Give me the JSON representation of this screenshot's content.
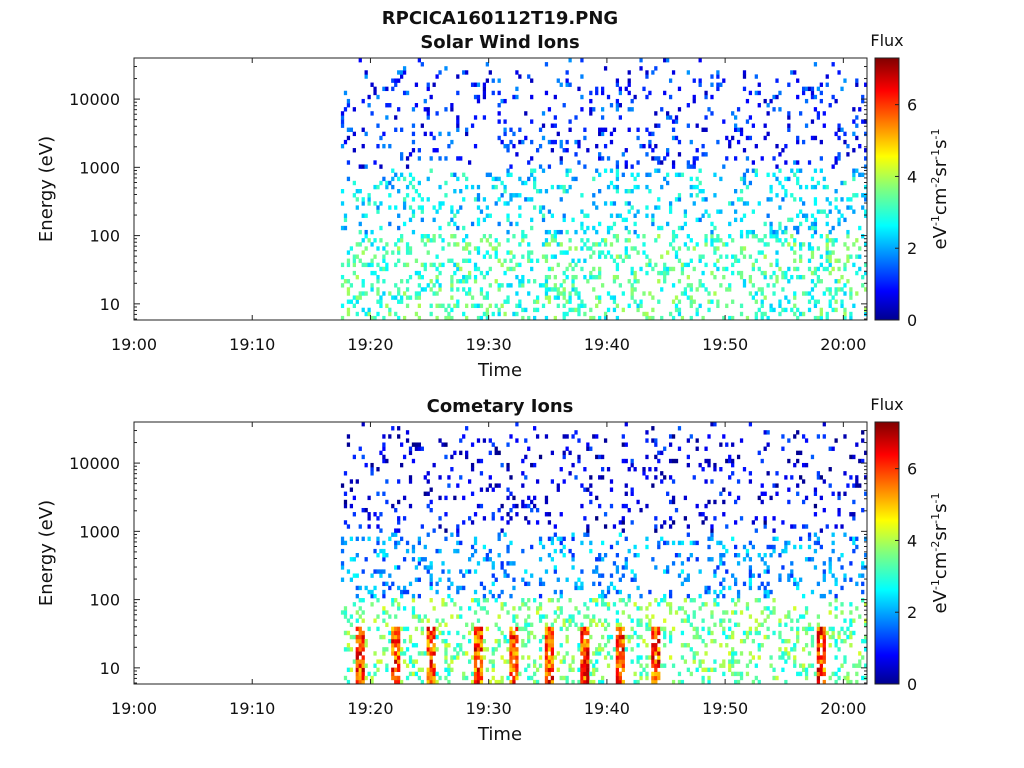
{
  "figure_title": "RPCICA160112T19.PNG",
  "chart_data": [
    {
      "type": "heatmap",
      "title": "Solar Wind Ions",
      "xlabel": "Time",
      "ylabel": "Energy (eV)",
      "x_ticks": [
        "19:00",
        "19:10",
        "19:20",
        "19:30",
        "19:40",
        "19:50",
        "20:00"
      ],
      "x_range": [
        "19:00",
        "20:02"
      ],
      "data_start": "19:17:30",
      "y_scale": "log",
      "y_range": [
        5.8,
        40000
      ],
      "y_ticks": [
        10,
        100,
        1000,
        10000
      ],
      "y_tick_labels": [
        "10",
        "100",
        "1000",
        "10000"
      ],
      "colorbar": {
        "title": "Flux",
        "label": "eV-1cm-2sr-1s-1",
        "range": [
          0,
          7.3
        ],
        "ticks": [
          0,
          2,
          4,
          6
        ],
        "tick_labels": [
          "0",
          "2",
          "4",
          "6"
        ],
        "colormap": "jet"
      },
      "typical_log_flux": {
        "above_1000eV": 1.2,
        "100_to_1000eV": 2.5,
        "below_100eV": 3.2
      },
      "peak_log_flux": 3.8,
      "grid": false
    },
    {
      "type": "heatmap",
      "title": "Cometary Ions",
      "xlabel": "Time",
      "ylabel": "Energy (eV)",
      "x_ticks": [
        "19:00",
        "19:10",
        "19:20",
        "19:30",
        "19:40",
        "19:50",
        "20:00"
      ],
      "x_range": [
        "19:00",
        "20:02"
      ],
      "data_start": "19:17:30",
      "y_scale": "log",
      "y_range": [
        5.8,
        40000
      ],
      "y_ticks": [
        10,
        100,
        1000,
        10000
      ],
      "y_tick_labels": [
        "10",
        "100",
        "1000",
        "10000"
      ],
      "colorbar": {
        "title": "Flux",
        "label": "eV-1cm-2sr-1s-1",
        "range": [
          0,
          7.3
        ],
        "ticks": [
          0,
          2,
          4,
          6
        ],
        "tick_labels": [
          "0",
          "2",
          "4",
          "6"
        ],
        "colormap": "jet"
      },
      "typical_log_flux": {
        "above_1000eV": 0.8,
        "100_to_1000eV": 2.0,
        "below_100eV": 3.5
      },
      "peak_log_flux": 7.0,
      "bright_low_energy_times": [
        "19:19",
        "19:22",
        "19:25",
        "19:29",
        "19:32",
        "19:35",
        "19:38",
        "19:41",
        "19:44",
        "19:58"
      ],
      "grid": false
    }
  ]
}
